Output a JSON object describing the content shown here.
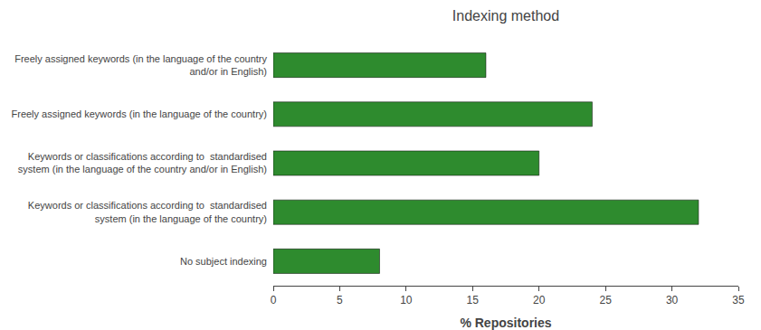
{
  "chart_data": {
    "type": "bar",
    "orientation": "horizontal",
    "title": "Indexing method",
    "xlabel": "% Repositories",
    "categories": [
      "No subject indexing",
      "Keywords or classifications according to  standardised\nsystem (in the language of the country)",
      "Keywords or classifications according to  standardised\nsystem (in the language of the country and/or in English)",
      "Freely assigned keywords (in the language of the country)",
      "Freely assigned keywords (in the language of the country\nand/or in English)"
    ],
    "values": [
      8,
      32,
      20,
      24,
      16
    ],
    "color": "#2e8b2e",
    "xlim": [
      0,
      35
    ],
    "xticks": [
      0,
      5,
      10,
      15,
      20,
      25,
      30,
      35
    ],
    "grid": false
  }
}
